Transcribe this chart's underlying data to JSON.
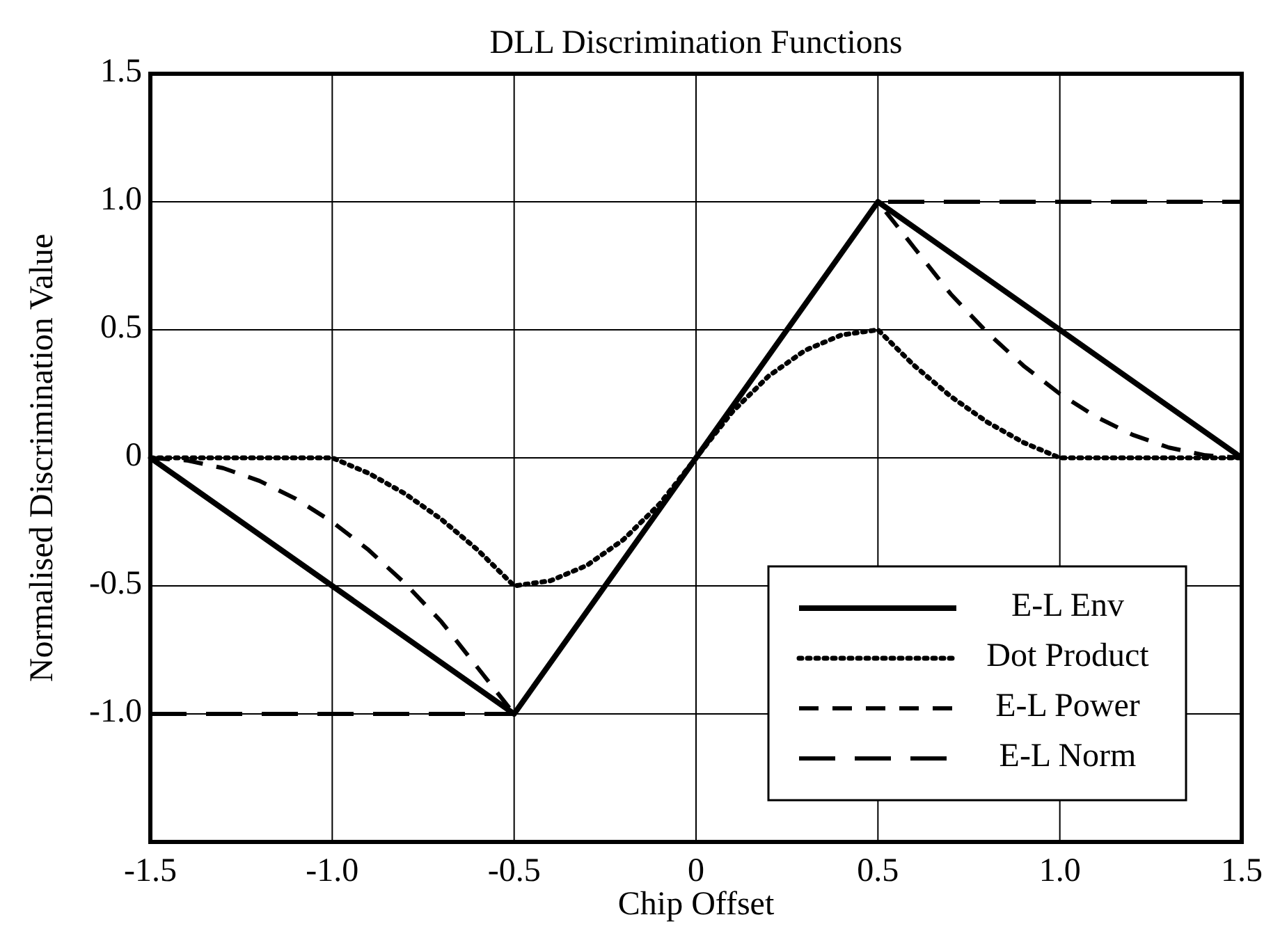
{
  "chart_data": {
    "type": "line",
    "title": "DLL Discrimination Functions",
    "xlabel": "Chip Offset",
    "ylabel": "Normalised Discrimination Value",
    "xlim": [
      -1.5,
      1.5
    ],
    "ylim": [
      -1.5,
      1.5
    ],
    "xticks": [
      -1.5,
      {
        "value": -1,
        "label": "-1.0"
      },
      -0.5,
      0,
      0.5,
      {
        "value": 1,
        "label": "1.0"
      },
      1.5
    ],
    "yticks": [
      {
        "value": -1,
        "label": "-1.0"
      },
      -0.5,
      0,
      0.5,
      {
        "value": 1,
        "label": "1.0"
      },
      1.5
    ],
    "grid": true,
    "legend": "bottom right",
    "marker": "none",
    "series": [
      {
        "name": "E-L Env",
        "color": "#000000",
        "line_style": "solid",
        "x": [
          -1.5,
          -0.5,
          0.5,
          1.5
        ],
        "values": [
          0,
          -1,
          1,
          0
        ]
      },
      {
        "name": "Dot Product",
        "color": "#000000",
        "line_style": "dotted",
        "x": [
          -1.5,
          -1.0,
          -0.9,
          -0.8,
          -0.7,
          -0.6,
          -0.5,
          -0.4,
          -0.3,
          -0.2,
          -0.1,
          0,
          0.1,
          0.2,
          0.3,
          0.4,
          0.5,
          0.6,
          0.7,
          0.8,
          0.9,
          1.0,
          1.5
        ],
        "values": [
          0,
          0,
          -0.06,
          -0.14,
          -0.24,
          -0.36,
          -0.5,
          -0.48,
          -0.42,
          -0.32,
          -0.18,
          0,
          0.18,
          0.32,
          0.42,
          0.48,
          0.5,
          0.36,
          0.24,
          0.14,
          0.06,
          0,
          0
        ]
      },
      {
        "name": "E-L Power",
        "color": "#000000",
        "line_style": "dashed",
        "x": [
          -1.5,
          -1.4,
          -1.3,
          -1.2,
          -1.1,
          -1.0,
          -0.9,
          -0.8,
          -0.7,
          -0.6,
          -0.5,
          0.5,
          0.6,
          0.7,
          0.8,
          0.9,
          1.0,
          1.1,
          1.2,
          1.3,
          1.4,
          1.5
        ],
        "values": [
          0,
          -0.01,
          -0.04,
          -0.09,
          -0.16,
          -0.25,
          -0.36,
          -0.49,
          -0.64,
          -0.82,
          -1,
          1,
          0.82,
          0.64,
          0.49,
          0.36,
          0.25,
          0.16,
          0.09,
          0.04,
          0.01,
          0
        ]
      },
      {
        "name": "E-L Norm",
        "color": "#000000",
        "line_style": "dashed",
        "x": [
          -1.5,
          -0.5,
          0.5,
          1.5
        ],
        "values": [
          -1,
          -1,
          1,
          1
        ]
      }
    ]
  }
}
